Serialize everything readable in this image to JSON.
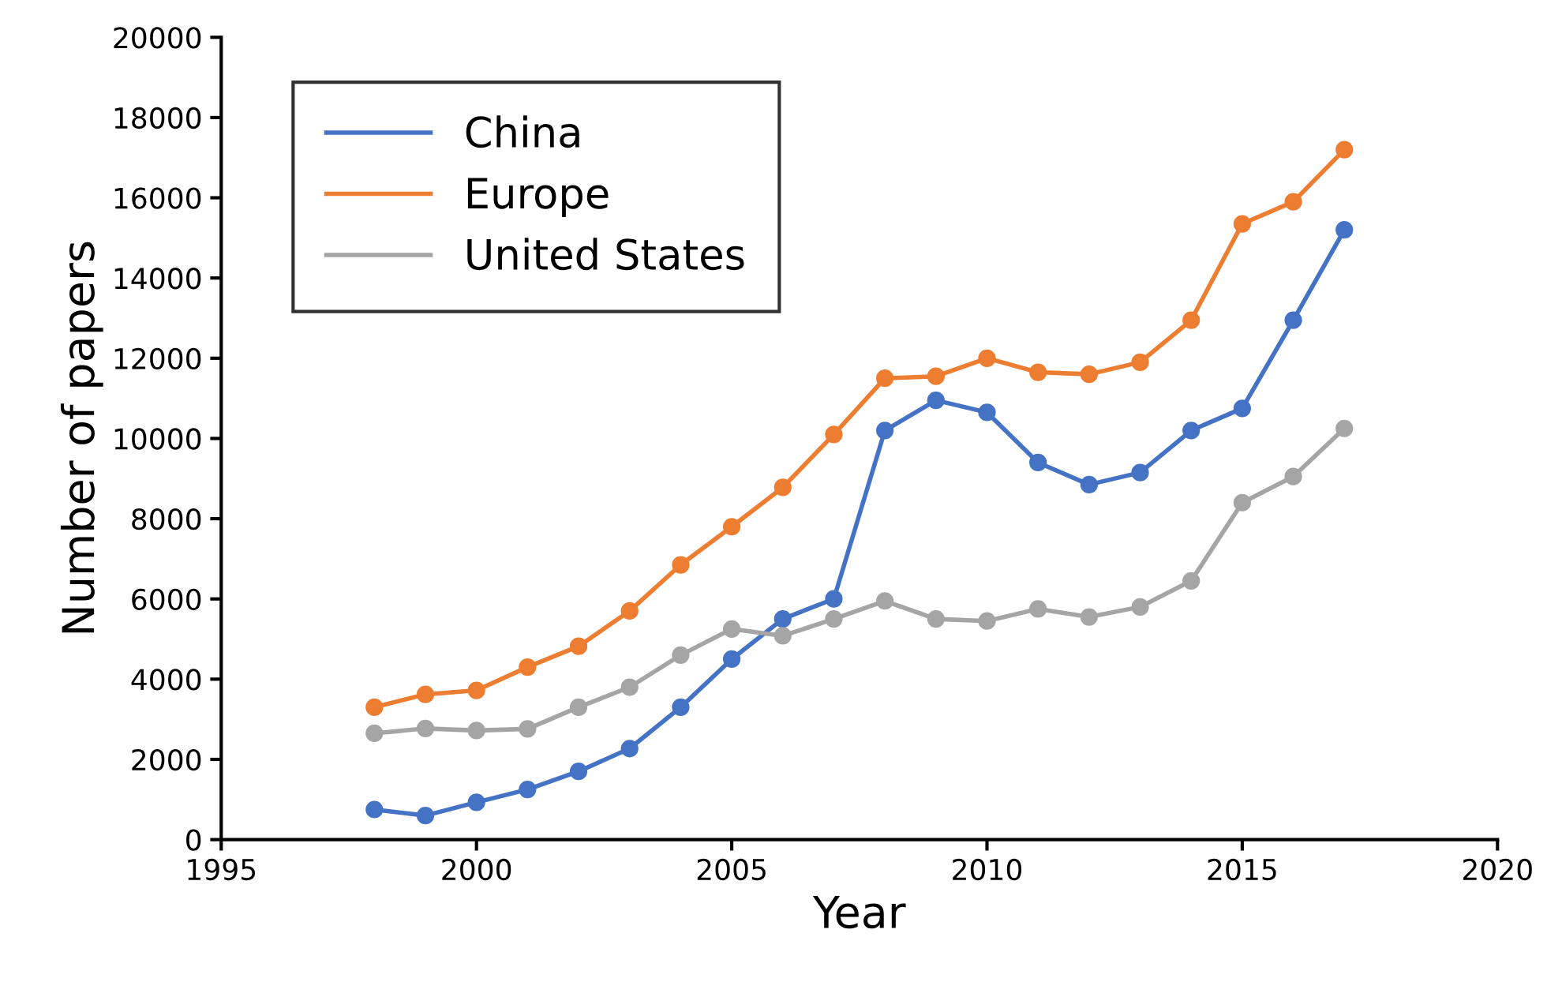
{
  "chart_data": {
    "type": "line",
    "xlabel": "Year",
    "ylabel": "Number of papers",
    "x": [
      1998,
      1999,
      2000,
      2001,
      2002,
      2003,
      2004,
      2005,
      2006,
      2007,
      2008,
      2009,
      2010,
      2011,
      2012,
      2013,
      2014,
      2015,
      2016,
      2017
    ],
    "series": [
      {
        "name": "China",
        "color": "#4472c4",
        "values": [
          750,
          600,
          930,
          1250,
          1700,
          2270,
          3300,
          4500,
          5500,
          6000,
          10200,
          10950,
          10650,
          9400,
          8850,
          9150,
          10200,
          10750,
          12950,
          15200
        ]
      },
      {
        "name": "Europe",
        "color": "#ed7d31",
        "values": [
          3300,
          3620,
          3720,
          4300,
          4820,
          5700,
          6850,
          7800,
          8780,
          10100,
          11500,
          11550,
          12000,
          11650,
          11600,
          11900,
          12950,
          15350,
          15900,
          17200
        ]
      },
      {
        "name": "United States",
        "color": "#a5a5a5",
        "values": [
          2650,
          2770,
          2720,
          2760,
          3300,
          3800,
          4600,
          5250,
          5080,
          5500,
          5950,
          5500,
          5450,
          5750,
          5550,
          5800,
          6450,
          8400,
          9050,
          10250
        ]
      }
    ],
    "xlim": [
      1995,
      2020
    ],
    "xticks": [
      1995,
      2000,
      2005,
      2010,
      2015,
      2020
    ],
    "ylim": [
      0,
      20000
    ],
    "yticks": [
      0,
      2000,
      4000,
      6000,
      8000,
      10000,
      12000,
      14000,
      16000,
      18000,
      20000
    ],
    "marker": "circle",
    "line_style": "solid",
    "grid": false,
    "legend": "top left"
  }
}
